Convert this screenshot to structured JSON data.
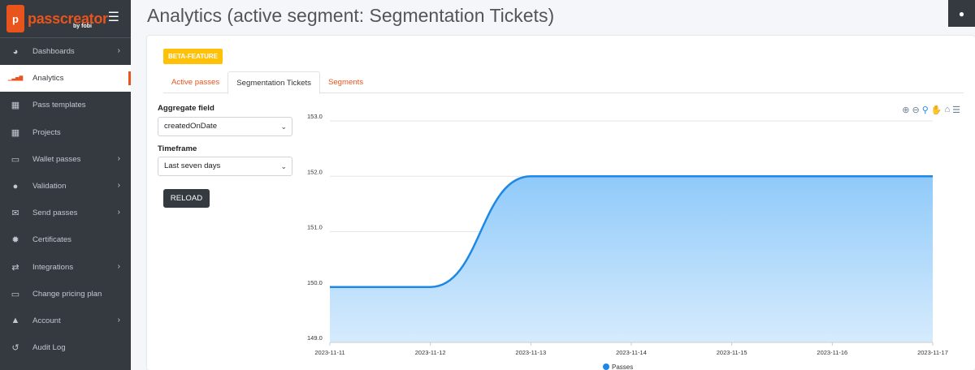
{
  "brand": {
    "name": "passcreator",
    "sub": "by fobi"
  },
  "header": {
    "title": "Analytics (active segment: Segmentation Tickets)"
  },
  "sidebar": {
    "items": [
      {
        "label": "Dashboards",
        "icon": "dashboard-icon",
        "chevron": true,
        "active": false
      },
      {
        "label": "Analytics",
        "icon": "signal-bars-icon",
        "chevron": false,
        "active": true
      },
      {
        "label": "Pass templates",
        "icon": "template-icon",
        "chevron": false,
        "active": false
      },
      {
        "label": "Projects",
        "icon": "project-icon",
        "chevron": false,
        "active": false
      },
      {
        "label": "Wallet passes",
        "icon": "card-icon",
        "chevron": true,
        "active": false
      },
      {
        "label": "Validation",
        "icon": "globe-icon",
        "chevron": true,
        "active": false
      },
      {
        "label": "Send passes",
        "icon": "envelope-icon",
        "chevron": true,
        "active": false
      },
      {
        "label": "Certificates",
        "icon": "certificate-icon",
        "chevron": false,
        "active": false
      },
      {
        "label": "Integrations",
        "icon": "exchange-icon",
        "chevron": true,
        "active": false
      },
      {
        "label": "Change pricing plan",
        "icon": "credit-card-icon",
        "chevron": false,
        "active": false
      },
      {
        "label": "Account",
        "icon": "user-icon",
        "chevron": true,
        "active": false
      },
      {
        "label": "Audit Log",
        "icon": "history-icon",
        "chevron": false,
        "active": false
      }
    ]
  },
  "card": {
    "badge": "BETA-FEATURE",
    "tabs": [
      {
        "label": "Active passes",
        "active": false
      },
      {
        "label": "Segmentation Tickets",
        "active": true
      },
      {
        "label": "Segments",
        "active": false
      }
    ],
    "aggregate_label": "Aggregate field",
    "aggregate_value": "createdOnDate",
    "timeframe_label": "Timeframe",
    "timeframe_value": "Last seven days",
    "reload_label": "RELOAD"
  },
  "colors": {
    "accent": "#e8541c",
    "sidebar": "#343a40",
    "series": "#1e88e5",
    "badge": "#ffc107"
  },
  "chart_data": {
    "type": "area",
    "x": [
      "2023-11-11",
      "2023-11-12",
      "2023-11-13",
      "2023-11-14",
      "2023-11-15",
      "2023-11-16",
      "2023-11-17"
    ],
    "series": [
      {
        "name": "Passes",
        "values": [
          150,
          150,
          152,
          152,
          152,
          152,
          152
        ]
      }
    ],
    "ylim": [
      149,
      153
    ],
    "yticks": [
      "149.0",
      "150.0",
      "151.0",
      "152.0",
      "153.0"
    ],
    "grid": true,
    "legend": "bottom"
  }
}
